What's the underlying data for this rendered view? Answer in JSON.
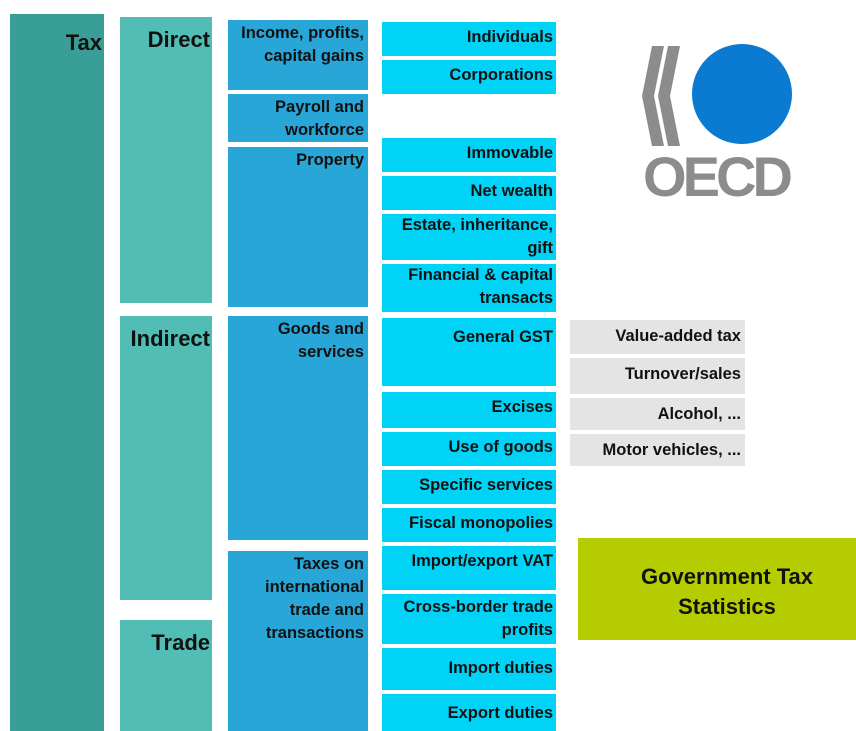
{
  "tax": "Tax",
  "groups": [
    "Direct",
    "Indirect",
    "Trade"
  ],
  "bases": [
    "Income, profits, capital gains",
    "Payroll and workforce",
    "Property",
    "Goods and services",
    "Taxes on international trade and transactions"
  ],
  "subtypes": [
    "Individuals",
    "Corporations",
    "Immovable",
    "Net wealth",
    "Estate, inheritance, gift",
    "Financial & capital transacts",
    "General GST",
    "Excises",
    "Use of goods",
    "Specific services",
    "Fiscal monopolies",
    "Import/export VAT",
    "Cross-border trade profits",
    "Import duties",
    "Export duties"
  ],
  "examples": [
    "Value-added tax",
    "Turnover/sales",
    "Alcohol, ...",
    "Motor vehicles, ..."
  ],
  "banner": "Government Tax Statistics",
  "logo": "OECD"
}
